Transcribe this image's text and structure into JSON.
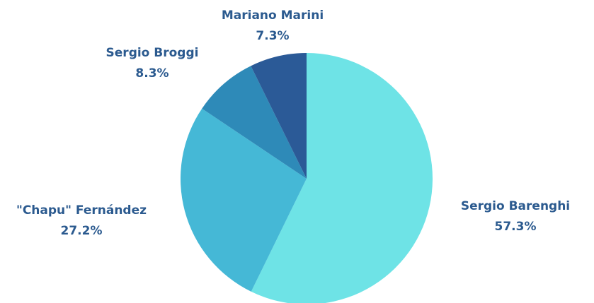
{
  "chart_data": {
    "type": "pie",
    "categories": [
      "Sergio Barenghi",
      "\"Chapu\" Fernández",
      "Sergio Broggi",
      "Mariano Marini"
    ],
    "values": [
      57.3,
      27.2,
      8.3,
      7.3
    ],
    "value_labels": [
      "57.3%",
      "27.2%",
      "8.3%",
      "7.3%"
    ],
    "colors": [
      "#6ee3e6",
      "#45b8d6",
      "#2e8ab8",
      "#2b5a97"
    ]
  }
}
